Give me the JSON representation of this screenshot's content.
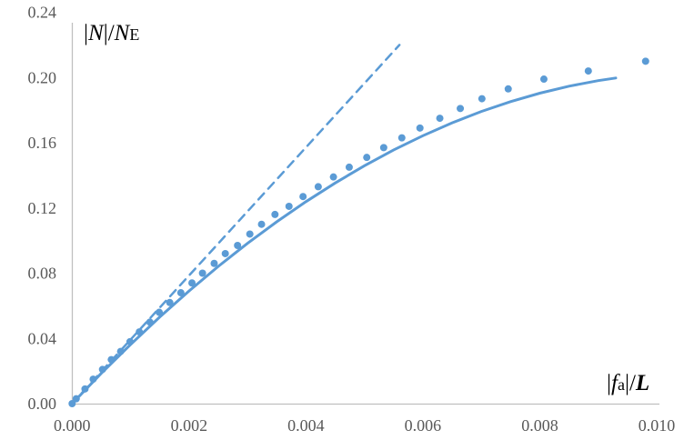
{
  "chart_data": {
    "type": "scatter",
    "xlim": [
      0,
      0.01
    ],
    "ylim": [
      0,
      0.24
    ],
    "x_ticks": [
      "0.000",
      "0.002",
      "0.004",
      "0.006",
      "0.008",
      "0.010"
    ],
    "y_ticks": [
      "0.00",
      "0.04",
      "0.08",
      "0.12",
      "0.16",
      "0.20",
      "0.24"
    ],
    "xlabel": {
      "bar_open": "|",
      "main": "f",
      "sub": "a",
      "bar_close": "|/",
      "tail": "L"
    },
    "ylabel": {
      "bar_open": "|",
      "main": "N",
      "bar_close": "|/",
      "tail": "N",
      "sub": "E"
    },
    "grid": false,
    "legend": "none",
    "color": "#5b9bd5",
    "series": [
      {
        "style": "dots",
        "x": [
          0,
          7e-05,
          0.00022,
          0.00036,
          0.00052,
          0.00067,
          0.00083,
          0.00099,
          0.00115,
          0.00133,
          0.00149,
          0.00167,
          0.00186,
          0.00205,
          0.00223,
          0.00243,
          0.00262,
          0.00283,
          0.00304,
          0.00324,
          0.00347,
          0.00371,
          0.00395,
          0.00421,
          0.00447,
          0.00474,
          0.00504,
          0.00533,
          0.00564,
          0.00595,
          0.00629,
          0.00664,
          0.00701,
          0.00746,
          0.00807,
          0.00883,
          0.00981
        ],
        "y": [
          0,
          0.003,
          0.009,
          0.015,
          0.021,
          0.027,
          0.032,
          0.038,
          0.044,
          0.05,
          0.056,
          0.062,
          0.068,
          0.074,
          0.08,
          0.086,
          0.092,
          0.097,
          0.104,
          0.11,
          0.116,
          0.121,
          0.127,
          0.133,
          0.139,
          0.145,
          0.151,
          0.157,
          0.163,
          0.169,
          0.175,
          0.181,
          0.187,
          0.193,
          0.199,
          0.204,
          0.21
        ]
      },
      {
        "style": "solid",
        "x": [
          0,
          0.0005,
          0.001,
          0.0015,
          0.002,
          0.0025,
          0.003,
          0.0035,
          0.004,
          0.0045,
          0.005,
          0.0055,
          0.006,
          0.0065,
          0.007,
          0.0075,
          0.008,
          0.0085,
          0.009,
          0.0093
        ],
        "y": [
          0,
          0.0186,
          0.0363,
          0.0532,
          0.0691,
          0.0842,
          0.0983,
          0.1115,
          0.1239,
          0.1353,
          0.1459,
          0.1556,
          0.1643,
          0.1722,
          0.1792,
          0.1852,
          0.1904,
          0.1947,
          0.1981,
          0.1997
        ]
      },
      {
        "style": "dashed",
        "x": [
          0,
          0.0056
        ],
        "y": [
          0,
          0.22
        ]
      }
    ]
  }
}
